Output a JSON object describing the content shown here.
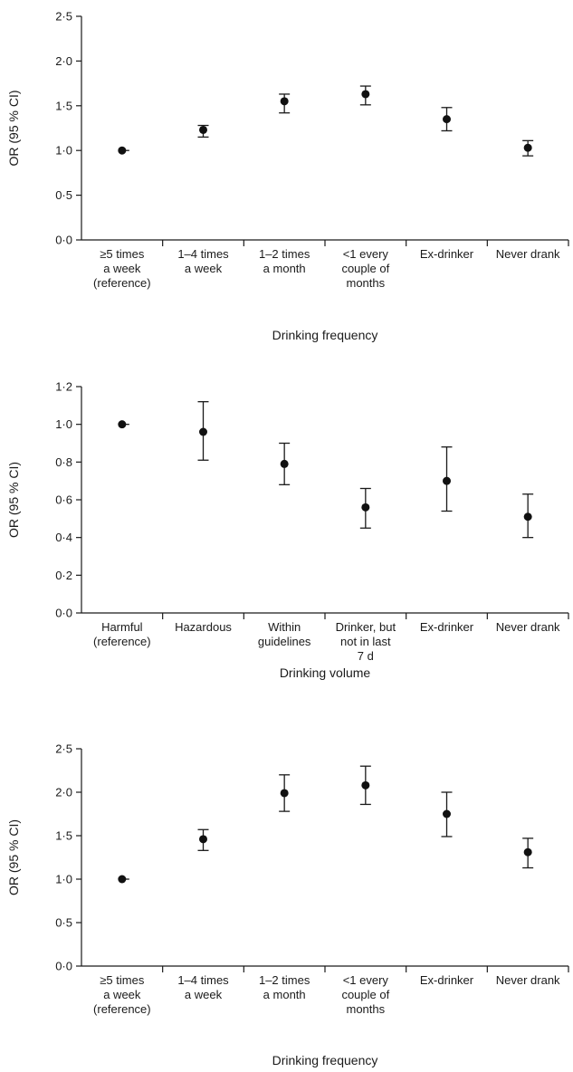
{
  "chart_data": [
    {
      "type": "scatter",
      "ylabel": "OR (95 % CI)",
      "xlabel": "Drinking frequency",
      "ylim": [
        0,
        2.5
      ],
      "yticks": [
        "0·0",
        "0·5",
        "1·0",
        "1·5",
        "2·0",
        "2·5"
      ],
      "ytick_values": [
        0,
        0.5,
        1.0,
        1.5,
        2.0,
        2.5
      ],
      "categories": [
        [
          "≥5 times",
          "a week",
          "(reference)"
        ],
        [
          "1–4 times",
          "a week"
        ],
        [
          "1–2 times",
          "a month"
        ],
        [
          "<1 every",
          "couple of",
          "months"
        ],
        [
          "Ex-drinker"
        ],
        [
          "Never drank"
        ]
      ],
      "values": [
        1.0,
        1.23,
        1.55,
        1.63,
        1.35,
        1.03
      ],
      "ci_lower": [
        null,
        1.15,
        1.42,
        1.51,
        1.22,
        0.94
      ],
      "ci_upper": [
        null,
        1.28,
        1.63,
        1.72,
        1.48,
        1.11
      ]
    },
    {
      "type": "scatter",
      "ylabel": "OR (95 % CI)",
      "xlabel": "Drinking volume",
      "ylim": [
        0,
        1.2
      ],
      "yticks": [
        "0·0",
        "0·2",
        "0·4",
        "0·6",
        "0·8",
        "1·0",
        "1·2"
      ],
      "ytick_values": [
        0,
        0.2,
        0.4,
        0.6,
        0.8,
        1.0,
        1.2
      ],
      "categories": [
        [
          "Harmful",
          "(reference)"
        ],
        [
          "Hazardous"
        ],
        [
          "Within",
          "guidelines"
        ],
        [
          "Drinker, but",
          "not in last",
          "7 d"
        ],
        [
          "Ex-drinker"
        ],
        [
          "Never drank"
        ]
      ],
      "values": [
        1.0,
        0.96,
        0.79,
        0.56,
        0.7,
        0.51
      ],
      "ci_lower": [
        null,
        0.81,
        0.68,
        0.45,
        0.54,
        0.4
      ],
      "ci_upper": [
        null,
        1.12,
        0.9,
        0.66,
        0.88,
        0.63
      ]
    },
    {
      "type": "scatter",
      "ylabel": "OR (95 % CI)",
      "xlabel": "Drinking frequency",
      "ylim": [
        0,
        2.5
      ],
      "yticks": [
        "0·0",
        "0·5",
        "1·0",
        "1·5",
        "2·0",
        "2·5"
      ],
      "ytick_values": [
        0,
        0.5,
        1.0,
        1.5,
        2.0,
        2.5
      ],
      "categories": [
        [
          "≥5 times",
          "a week",
          "(reference)"
        ],
        [
          "1–4 times",
          "a week"
        ],
        [
          "1–2 times",
          "a month"
        ],
        [
          "<1 every",
          "couple of",
          "months"
        ],
        [
          "Ex-drinker"
        ],
        [
          "Never drank"
        ]
      ],
      "values": [
        1.0,
        1.46,
        1.99,
        2.08,
        1.75,
        1.31
      ],
      "ci_lower": [
        null,
        1.33,
        1.78,
        1.86,
        1.49,
        1.13
      ],
      "ci_upper": [
        null,
        1.57,
        2.2,
        2.3,
        2.0,
        1.47
      ]
    }
  ]
}
